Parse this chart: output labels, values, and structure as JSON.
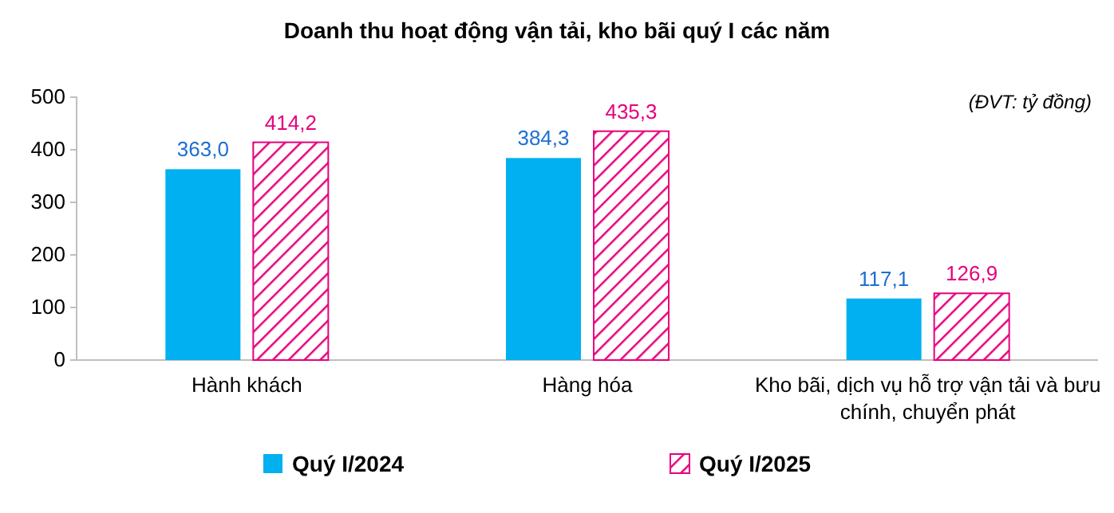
{
  "chart_data": {
    "type": "bar",
    "title": "Doanh thu hoạt động vận tải, kho bãi quý I các năm",
    "annotations": [
      "(ĐVT: tỷ đồng)"
    ],
    "categories": [
      "Hành khách",
      "Hàng hóa",
      "Kho bãi, dịch vụ hỗ trợ vận tải và bưu chính, chuyển phát"
    ],
    "series": [
      {
        "name": "Quý I/2024",
        "color": "#00b0f0",
        "values": [
          363.0,
          384.3,
          117.1
        ],
        "value_labels": [
          "363,0",
          "384,3",
          "117,1"
        ]
      },
      {
        "name": "Quý I/2025",
        "color": "#e6007e",
        "values": [
          414.2,
          435.3,
          126.9
        ],
        "value_labels": [
          "414,2",
          "435,3",
          "126,9"
        ]
      }
    ],
    "ylim": [
      0,
      500
    ],
    "yticks": [
      0,
      100,
      200,
      300,
      400,
      500
    ],
    "grid": false,
    "legend": "bottom"
  }
}
